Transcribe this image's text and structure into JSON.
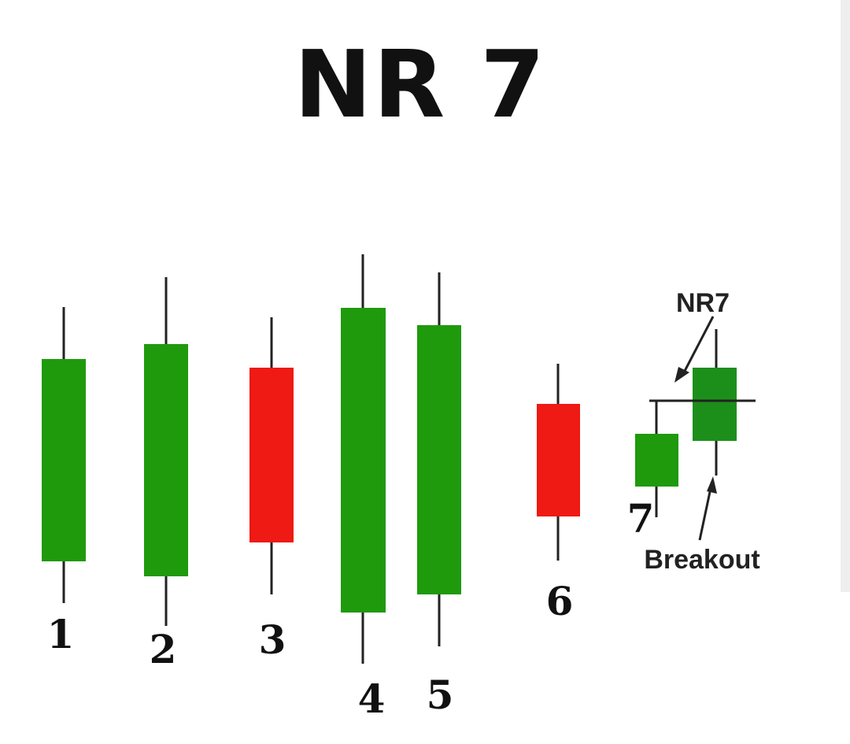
{
  "title": "NR 7",
  "colors": {
    "bullish": "#1f9a0c",
    "bullish_last": "#1c8f1a",
    "bearish": "#ee1a13",
    "wick": "#222222"
  },
  "candles": [
    {
      "label": "1",
      "direction": "up"
    },
    {
      "label": "2",
      "direction": "up"
    },
    {
      "label": "3",
      "direction": "down"
    },
    {
      "label": "4",
      "direction": "up"
    },
    {
      "label": "5",
      "direction": "up"
    },
    {
      "label": "6",
      "direction": "down"
    },
    {
      "label": "7",
      "direction": "up"
    },
    {
      "label": "",
      "direction": "up"
    }
  ],
  "annotations": {
    "nr7_label": "NR7",
    "breakout_label": "Breakout"
  }
}
